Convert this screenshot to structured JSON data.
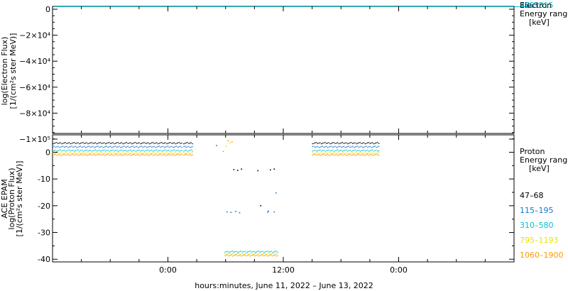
{
  "xlabel": "hours:minutes, June 11, 2022 – June 13, 2022",
  "x_ticks": [
    "0:00",
    "12:00",
    "0:00"
  ],
  "colors": {
    "47-68": "#000000",
    "115-195": "#1874cd",
    "310-580": "#00c5cd",
    "795-1193": "#e6e600",
    "1060-1900": "#ff9900"
  },
  "chart_data": [
    {
      "type": "scatter",
      "panel": "electron",
      "ylabel_lines": [
        "log(Electron Flux)",
        "[1/(cm²s ster MeV)]"
      ],
      "y_ticks": [
        "0",
        "−2×10⁴",
        "−4×10⁴",
        "−6×10⁴",
        "−8×10⁴",
        "−1×10⁵"
      ],
      "ylim": [
        -100000,
        0
      ],
      "legend_title": [
        "Electron",
        "Energy range",
        "[keV]"
      ],
      "legend_overlap_text": [
        "38–53",
        "175–315"
      ],
      "series": [
        {
          "name": "38–53",
          "color_key": "115-195",
          "x_range": [
            -12,
            38
          ],
          "y": 0
        },
        {
          "name": "175–315",
          "color_key": "310-580",
          "x_range": [
            -12,
            38
          ],
          "y": 0
        }
      ]
    },
    {
      "type": "scatter",
      "panel": "proton",
      "ylabel_lines": [
        "ACE EPAM",
        "log(Proton Flux)",
        "[1/(cm²s ster MeV)]"
      ],
      "y_ticks": [
        0,
        -10,
        -20,
        -30,
        -40
      ],
      "ylim": [
        -41,
        6.5
      ],
      "xlim_hours": [
        -12,
        36
      ],
      "legend_title": [
        "Proton",
        "Energy range",
        "[keV]"
      ],
      "series": [
        {
          "name": "47–68",
          "color_key": "47-68",
          "segments": [
            [
              -12,
              1.4,
              3.4
            ],
            [
              1.6,
              2.6,
              3.4
            ],
            [
              15.0,
              22.0,
              3.4
            ]
          ],
          "extra": [
            [
              6.8,
              -6.5
            ],
            [
              7.2,
              -6.8
            ],
            [
              7.6,
              -6.3
            ],
            [
              9.3,
              -6.9
            ],
            [
              10.6,
              -6.6
            ],
            [
              11.0,
              -6.3
            ],
            [
              9.6,
              -20.0
            ]
          ]
        },
        {
          "name": "115–195",
          "color_key": "115-195",
          "segments": [
            [
              -12,
              1.4,
              2.0
            ],
            [
              1.6,
              2.6,
              2.0
            ],
            [
              15.0,
              22.0,
              2.0
            ]
          ],
          "extra": [
            [
              5.0,
              2.5
            ],
            [
              6.1,
              -22.3
            ],
            [
              6.5,
              -22.5
            ],
            [
              7.0,
              -22.1
            ],
            [
              7.4,
              -22.6
            ],
            [
              10.3,
              -22.4
            ],
            [
              10.4,
              -22.0
            ],
            [
              11.0,
              -22.3
            ],
            [
              11.2,
              -15.2
            ]
          ]
        },
        {
          "name": "310–580",
          "color_key": "310-580",
          "segments": [
            [
              -12,
              1.4,
              0.6
            ],
            [
              1.6,
              2.6,
              0.6
            ],
            [
              15.0,
              22.0,
              0.6
            ],
            [
              5.9,
              11.4,
              -37.2
            ]
          ],
          "extra": []
        },
        {
          "name": "795–1193",
          "color_key": "795-1193",
          "segments": [
            [
              -12,
              1.4,
              -0.4
            ],
            [
              1.6,
              2.6,
              -0.4
            ],
            [
              15.0,
              22.0,
              -0.4
            ],
            [
              5.9,
              11.4,
              -38.0
            ]
          ],
          "extra": [
            [
              6.0,
              2.2
            ],
            [
              6.4,
              3.5
            ]
          ]
        },
        {
          "name": "1060–1900",
          "color_key": "1060-1900",
          "segments": [
            [
              -12,
              1.4,
              -1.0
            ],
            [
              1.6,
              2.6,
              -1.0
            ],
            [
              15.0,
              22.0,
              -1.0
            ],
            [
              5.9,
              11.4,
              -38.6
            ]
          ],
          "extra": [
            [
              5.7,
              0.3
            ],
            [
              6.2,
              4.3
            ],
            [
              6.6,
              3.9
            ]
          ]
        }
      ]
    }
  ]
}
